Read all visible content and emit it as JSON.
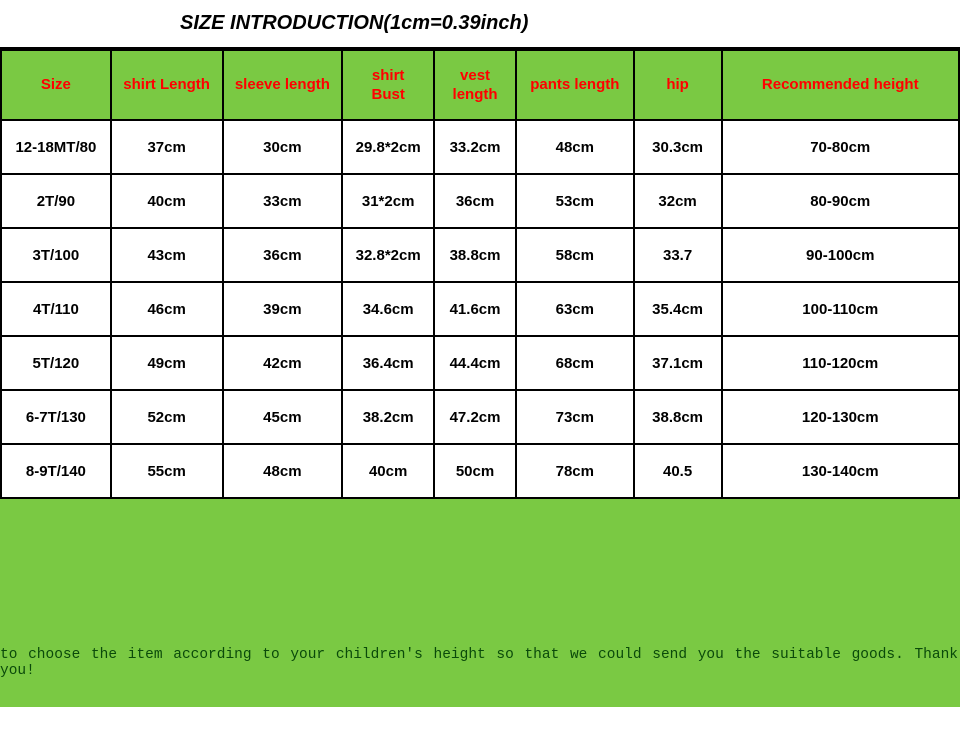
{
  "title": "SIZE INTRODUCTION(1cm=0.39inch)",
  "headers": [
    "Size",
    "shirt Length",
    "sleeve length",
    "shirt\nBust",
    "vest\nlength",
    "pants length",
    "hip",
    "Recommended height"
  ],
  "rows": [
    [
      "12-18MT/80",
      "37cm",
      "30cm",
      "29.8*2cm",
      "33.2cm",
      "48cm",
      "30.3cm",
      "70-80cm"
    ],
    [
      "2T/90",
      "40cm",
      "33cm",
      "31*2cm",
      "36cm",
      "53cm",
      "32cm",
      "80-90cm"
    ],
    [
      "3T/100",
      "43cm",
      "36cm",
      "32.8*2cm",
      "38.8cm",
      "58cm",
      "33.7",
      "90-100cm"
    ],
    [
      "4T/110",
      "46cm",
      "39cm",
      "34.6cm",
      "41.6cm",
      "63cm",
      "35.4cm",
      "100-110cm"
    ],
    [
      "5T/120",
      "49cm",
      "42cm",
      "36.4cm",
      "44.4cm",
      "68cm",
      "37.1cm",
      "110-120cm"
    ],
    [
      "6-7T/130",
      "52cm",
      "45cm",
      "38.2cm",
      "47.2cm",
      "73cm",
      "38.8cm",
      "120-130cm"
    ],
    [
      "8-9T/140",
      "55cm",
      "48cm",
      "40cm",
      "50cm",
      "78cm",
      "40.5",
      "130-140cm"
    ]
  ],
  "footer_text": "to choose the item according to your children's height so that we could send you the suitable goods. Thank you!",
  "colors": {
    "header_bg": "#7ac943",
    "header_text": "#ff0000",
    "cell_text": "#000000",
    "footer_bg": "#7ac943",
    "footer_text": "#0a4a0a",
    "border": "#000000"
  },
  "col_classes": [
    "col-size",
    "col-shirt-length",
    "col-sleeve",
    "col-bust",
    "col-vest",
    "col-pants",
    "col-hip",
    "col-rec"
  ]
}
